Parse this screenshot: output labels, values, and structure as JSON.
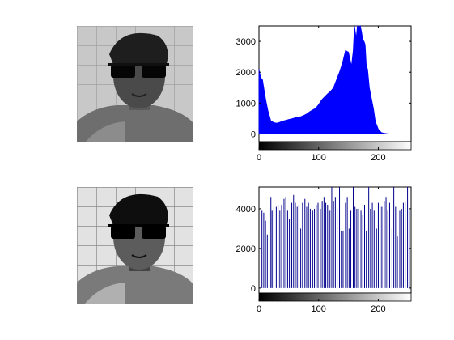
{
  "photos": [
    {
      "name": "original-grayscale-photo"
    },
    {
      "name": "equalized-grayscale-photo"
    }
  ],
  "colors": {
    "histogram_fill": "#0000ff",
    "histogram_stem": "#00008b",
    "axis": "#000000"
  },
  "chart_data": [
    {
      "type": "bar",
      "title": "",
      "xlabel": "",
      "ylabel": "",
      "xlim": [
        0,
        255
      ],
      "ylim": [
        -250,
        3500
      ],
      "xticks": [
        0,
        100,
        200
      ],
      "yticks": [
        0,
        1000,
        2000,
        3000
      ],
      "x": [
        0,
        2,
        4,
        6,
        8,
        10,
        12,
        15,
        20,
        25,
        30,
        35,
        40,
        45,
        50,
        55,
        60,
        65,
        70,
        75,
        80,
        85,
        90,
        95,
        100,
        105,
        110,
        115,
        120,
        125,
        130,
        135,
        140,
        145,
        150,
        155,
        158,
        160,
        163,
        165,
        168,
        170,
        172,
        174,
        176,
        178,
        180,
        182,
        185,
        188,
        190,
        192,
        195,
        200,
        205,
        210,
        215,
        220,
        230,
        240,
        255
      ],
      "values": [
        2100,
        1900,
        1800,
        1750,
        1500,
        1250,
        1050,
        750,
        420,
        370,
        350,
        380,
        420,
        440,
        470,
        490,
        520,
        550,
        560,
        600,
        650,
        720,
        780,
        830,
        950,
        1100,
        1200,
        1300,
        1380,
        1500,
        1750,
        2000,
        2300,
        2700,
        2650,
        2200,
        2700,
        3500,
        3100,
        3500,
        3450,
        3500,
        3300,
        3050,
        3000,
        2900,
        2200,
        2100,
        1500,
        1200,
        1000,
        800,
        400,
        150,
        50,
        20,
        10,
        0,
        0,
        0,
        0
      ],
      "gradient_bar": {
        "from": "#000000",
        "to": "#ffffff"
      }
    },
    {
      "type": "bar",
      "title": "",
      "xlabel": "",
      "ylabel": "",
      "xlim": [
        0,
        255
      ],
      "ylim": [
        -250,
        5100
      ],
      "xticks": [
        0,
        100,
        200
      ],
      "yticks": [
        0,
        2000,
        4000
      ],
      "x": [
        5,
        8,
        11,
        14,
        17,
        20,
        22,
        25,
        29,
        32,
        35,
        38,
        42,
        45,
        48,
        51,
        55,
        58,
        61,
        64,
        67,
        70,
        73,
        77,
        80,
        83,
        86,
        90,
        93,
        96,
        99,
        103,
        106,
        109,
        112,
        115,
        119,
        122,
        125,
        128,
        131,
        135,
        138,
        141,
        145,
        148,
        151,
        154,
        158,
        161,
        164,
        167,
        171,
        174,
        177,
        180,
        184,
        187,
        190,
        193,
        197,
        200,
        203,
        206,
        210,
        213,
        216,
        219,
        223,
        226,
        229,
        232,
        236,
        239,
        242,
        245,
        249,
        252
      ],
      "values": [
        3900,
        3800,
        3400,
        2700,
        4100,
        4600,
        3900,
        4100,
        4100,
        4200,
        3900,
        4200,
        4500,
        4600,
        3900,
        3500,
        4300,
        4700,
        4300,
        4100,
        4200,
        3000,
        4300,
        4500,
        4100,
        4300,
        4000,
        3900,
        4000,
        4200,
        4300,
        4000,
        4400,
        4600,
        4300,
        4200,
        3900,
        5100,
        4400,
        4600,
        4000,
        5100,
        2900,
        2900,
        4300,
        4600,
        3000,
        3900,
        5100,
        4100,
        4000,
        4000,
        3900,
        3700,
        4200,
        2900,
        5100,
        4000,
        4300,
        3900,
        3000,
        4300,
        4100,
        4100,
        4400,
        4600,
        3900,
        4300,
        3000,
        5100,
        4100,
        2600,
        3900,
        4000,
        4300,
        4400,
        5100,
        3900
      ],
      "gradient_bar": {
        "from": "#000000",
        "to": "#ffffff"
      }
    }
  ]
}
